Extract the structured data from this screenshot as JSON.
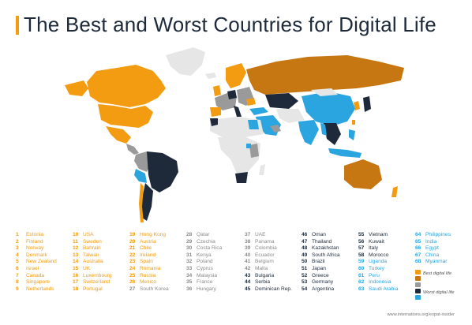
{
  "title": "The Best and Worst Countries for Digital Life",
  "colors": {
    "best_orange": "#f39c12",
    "dark_orange": "#c77712",
    "grey": "#9a9a9a",
    "light_grey": "#e6e6e6",
    "navy": "#1e2a3a",
    "light_blue": "#2aa5e0"
  },
  "legend": {
    "best_label": "Best digital life",
    "worst_label": "Worst digital life"
  },
  "source": "www.internations.org/expat-insider",
  "rankings": [
    [
      {
        "rank": "1",
        "name": "Estonia"
      },
      {
        "rank": "2",
        "name": "Finland"
      },
      {
        "rank": "3",
        "name": "Norway"
      },
      {
        "rank": "4",
        "name": "Denmark"
      },
      {
        "rank": "5",
        "name": "New Zealand"
      },
      {
        "rank": "6",
        "name": "Israel"
      },
      {
        "rank": "7",
        "name": "Canada"
      },
      {
        "rank": "8",
        "name": "Singapore"
      },
      {
        "rank": "9",
        "name": "Netherlands"
      }
    ],
    [
      {
        "rank": "10",
        "name": "USA"
      },
      {
        "rank": "11",
        "name": "Sweden"
      },
      {
        "rank": "12",
        "name": "Bahrain"
      },
      {
        "rank": "13",
        "name": "Taiwan"
      },
      {
        "rank": "14",
        "name": "Australia"
      },
      {
        "rank": "15",
        "name": "UK"
      },
      {
        "rank": "16",
        "name": "Luxembourg"
      },
      {
        "rank": "17",
        "name": "Switzerland"
      },
      {
        "rank": "18",
        "name": "Portugal"
      }
    ],
    [
      {
        "rank": "19",
        "name": "Hong Kong"
      },
      {
        "rank": "20",
        "name": "Austria"
      },
      {
        "rank": "21",
        "name": "Chile"
      },
      {
        "rank": "22",
        "name": "Ireland"
      },
      {
        "rank": "23",
        "name": "Spain"
      },
      {
        "rank": "24",
        "name": "Romania"
      },
      {
        "rank": "25",
        "name": "Russia"
      },
      {
        "rank": "26",
        "name": "Mexico"
      },
      {
        "rank": "27",
        "name": "South Korea"
      }
    ],
    [
      {
        "rank": "28",
        "name": "Qatar"
      },
      {
        "rank": "29",
        "name": "Czechia"
      },
      {
        "rank": "30",
        "name": "Costa Rica"
      },
      {
        "rank": "31",
        "name": "Kenya"
      },
      {
        "rank": "32",
        "name": "Poland"
      },
      {
        "rank": "33",
        "name": "Cyprus"
      },
      {
        "rank": "34",
        "name": "Malaysia"
      },
      {
        "rank": "35",
        "name": "France"
      },
      {
        "rank": "36",
        "name": "Hungary"
      }
    ],
    [
      {
        "rank": "37",
        "name": "UAE"
      },
      {
        "rank": "38",
        "name": "Panama"
      },
      {
        "rank": "39",
        "name": "Colombia"
      },
      {
        "rank": "40",
        "name": "Ecuador"
      },
      {
        "rank": "41",
        "name": "Belgium"
      },
      {
        "rank": "42",
        "name": "Malta"
      },
      {
        "rank": "43",
        "name": "Bulgaria"
      },
      {
        "rank": "44",
        "name": "Serbia"
      },
      {
        "rank": "45",
        "name": "Dominican Rep."
      }
    ],
    [
      {
        "rank": "46",
        "name": "Oman"
      },
      {
        "rank": "47",
        "name": "Thailand"
      },
      {
        "rank": "48",
        "name": "Kazakhstan"
      },
      {
        "rank": "49",
        "name": "South Africa"
      },
      {
        "rank": "50",
        "name": "Brazil"
      },
      {
        "rank": "51",
        "name": "Japan"
      },
      {
        "rank": "52",
        "name": "Greece"
      },
      {
        "rank": "53",
        "name": "Germany"
      },
      {
        "rank": "54",
        "name": "Argentina"
      }
    ],
    [
      {
        "rank": "55",
        "name": "Vietnam"
      },
      {
        "rank": "56",
        "name": "Kuwait"
      },
      {
        "rank": "57",
        "name": "Italy"
      },
      {
        "rank": "58",
        "name": "Morocco"
      },
      {
        "rank": "59",
        "name": "Uganda"
      },
      {
        "rank": "60",
        "name": "Turkey"
      },
      {
        "rank": "61",
        "name": "Peru"
      },
      {
        "rank": "62",
        "name": "Indonesia"
      },
      {
        "rank": "63",
        "name": "Saudi Arabia"
      }
    ],
    [
      {
        "rank": "64",
        "name": "Philippines"
      },
      {
        "rank": "65",
        "name": "India"
      },
      {
        "rank": "66",
        "name": "Egypt"
      },
      {
        "rank": "67",
        "name": "China"
      },
      {
        "rank": "68",
        "name": "Myanmar"
      }
    ]
  ]
}
